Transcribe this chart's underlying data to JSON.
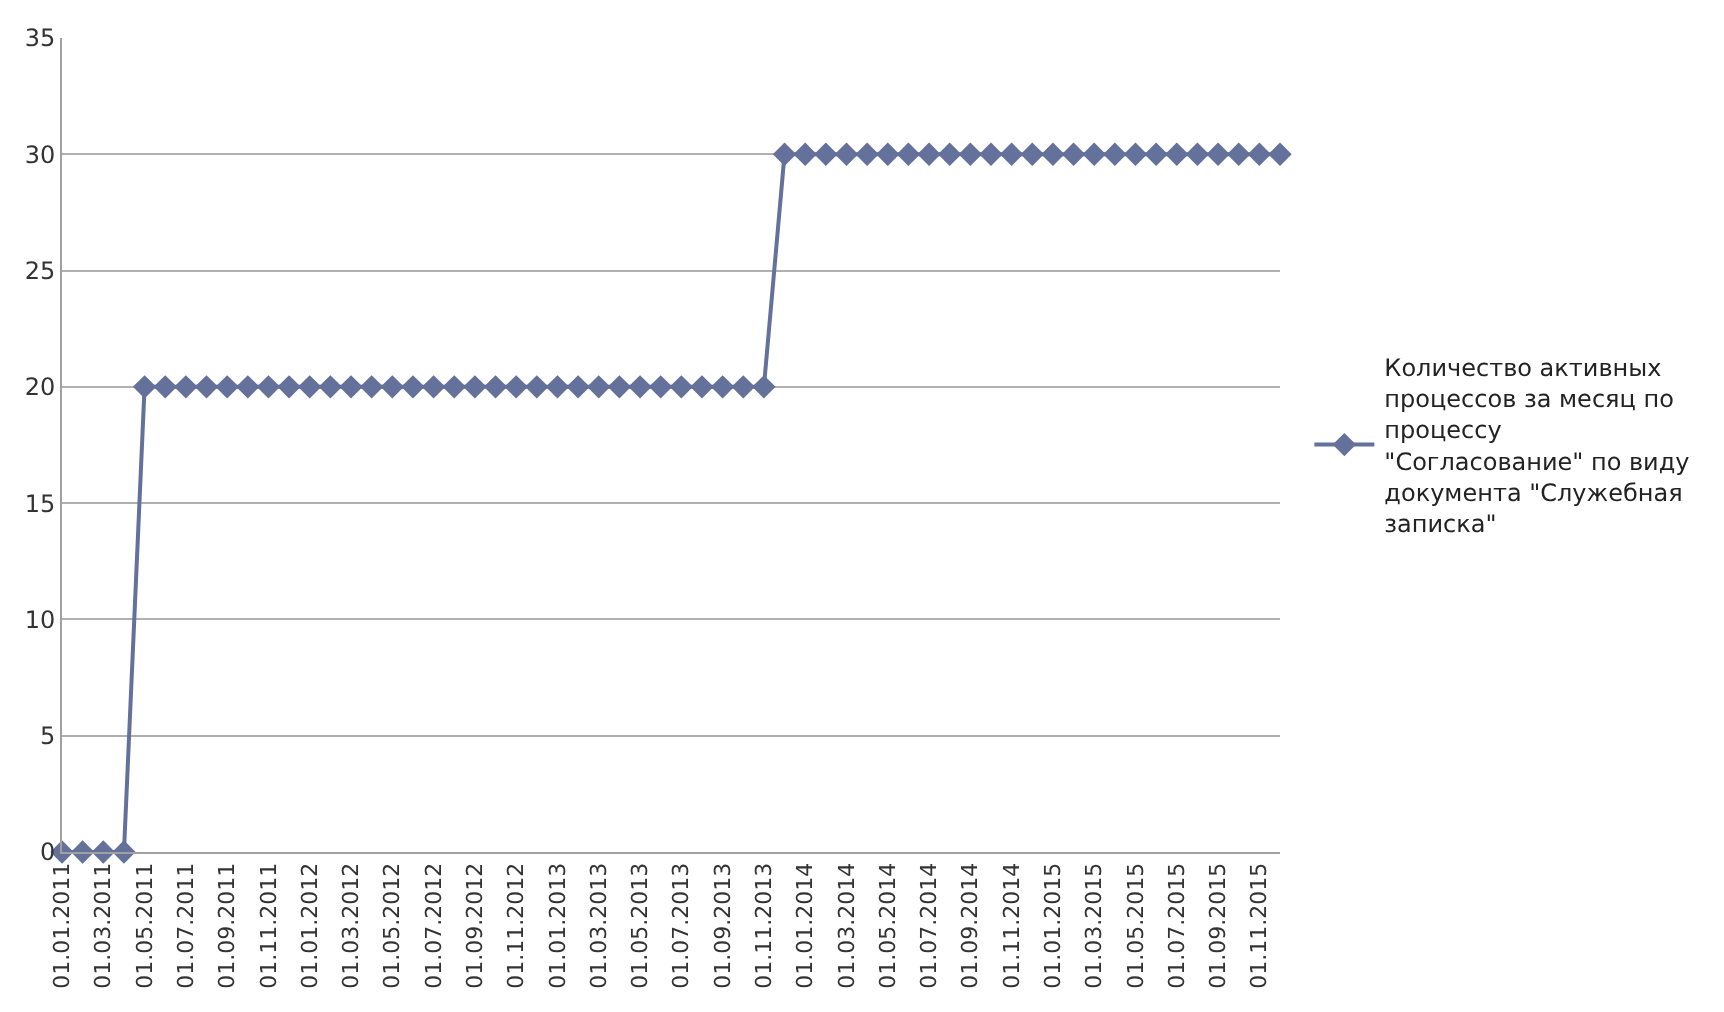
{
  "chart_data": {
    "type": "line",
    "categories": [
      "01.01.2011",
      null,
      "01.03.2011",
      null,
      "01.05.2011",
      null,
      "01.07.2011",
      null,
      "01.09.2011",
      null,
      "01.11.2011",
      null,
      "01.01.2012",
      null,
      "01.03.2012",
      null,
      "01.05.2012",
      null,
      "01.07.2012",
      null,
      "01.09.2012",
      null,
      "01.11.2012",
      null,
      "01.01.2013",
      null,
      "01.03.2013",
      null,
      "01.05.2013",
      null,
      "01.07.2013",
      null,
      "01.09.2013",
      null,
      "01.11.2013",
      null,
      "01.01.2014",
      null,
      "01.03.2014",
      null,
      "01.05.2014",
      null,
      "01.07.2014",
      null,
      "01.09.2014",
      null,
      "01.11.2014",
      null,
      "01.01.2015",
      null,
      "01.03.2015",
      null,
      "01.05.2015",
      null,
      "01.07.2015",
      null,
      "01.09.2015",
      null,
      "01.11.2015",
      null
    ],
    "series": [
      {
        "name": "Количество активных процессов за месяц по процессу \"Согласование\" по виду документа \"Служебная записка\"",
        "color": "#63719b",
        "values": [
          0,
          0,
          0,
          0,
          20,
          20,
          20,
          20,
          20,
          20,
          20,
          20,
          20,
          20,
          20,
          20,
          20,
          20,
          20,
          20,
          20,
          20,
          20,
          20,
          20,
          20,
          20,
          20,
          20,
          20,
          20,
          20,
          20,
          20,
          20,
          30,
          30,
          30,
          30,
          30,
          30,
          30,
          30,
          30,
          30,
          30,
          30,
          30,
          30,
          30,
          30,
          30,
          30,
          30,
          30,
          30,
          30,
          30,
          30,
          30
        ]
      }
    ],
    "ylim": [
      0,
      35
    ],
    "yticks": [
      0,
      5,
      10,
      15,
      20,
      25,
      30,
      35
    ],
    "grid": "y",
    "legend": "right",
    "marker": "diamond",
    "line_style": "solid"
  }
}
